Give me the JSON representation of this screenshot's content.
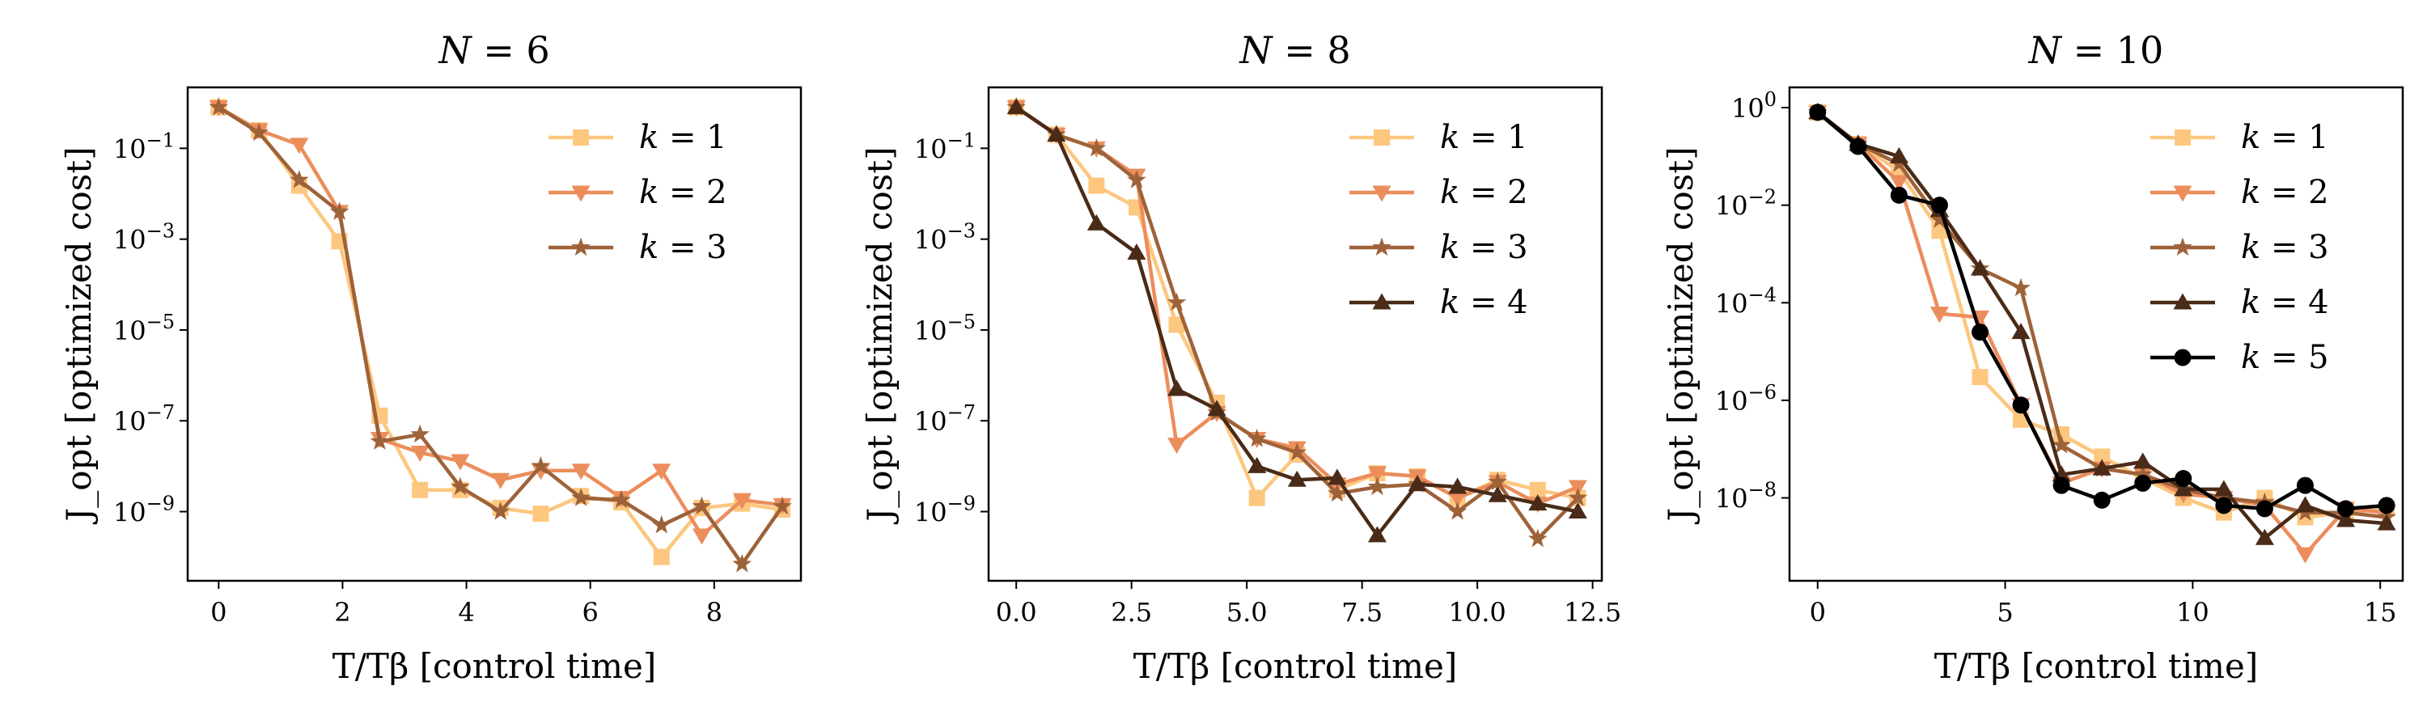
{
  "figure": {
    "panels": [
      {
        "title": "N = 6",
        "xlabel": "T/Tβ [control time]",
        "ylabel": "J_opt [optimized cost]"
      },
      {
        "title": "N = 8",
        "xlabel": "T/Tβ [control time]",
        "ylabel": "J_opt [optimized cost]"
      },
      {
        "title": "N = 10",
        "xlabel": "T/Tβ [control time]",
        "ylabel": "J_opt [optimized cost]"
      }
    ]
  },
  "chart_data": [
    {
      "type": "line",
      "title": "N = 6",
      "xlabel": "T/Tβ [control time]",
      "ylabel": "J_opt [optimized cost]",
      "yscale": "log",
      "xlim": [
        -0.5,
        9.4
      ],
      "ylim": [
        3e-11,
        2.2
      ],
      "xticks": [
        0,
        2,
        4,
        6,
        8
      ],
      "xtick_labels": [
        "0",
        "2",
        "4",
        "6",
        "8"
      ],
      "yticks": [
        1e-09,
        1e-07,
        1e-05,
        0.001,
        0.1
      ],
      "ytick_labels": [
        "10^-9",
        "10^-7",
        "10^-5",
        "10^-3",
        "10^-1"
      ],
      "legend": {
        "position": "top-right"
      },
      "series": [
        {
          "name": "k = 1",
          "color": "#fdc77f",
          "marker": "square",
          "x": [
            0,
            0.65,
            1.3,
            1.95,
            2.6,
            3.25,
            3.9,
            4.55,
            5.2,
            5.85,
            6.5,
            7.15,
            7.8,
            8.45,
            9.1
          ],
          "y": [
            0.8,
            0.25,
            0.015,
            0.0009,
            1.3e-07,
            3e-09,
            3e-09,
            1.2e-09,
            9e-10,
            2.2e-09,
            1.6e-09,
            1e-10,
            1.2e-09,
            1.5e-09,
            1.1e-09
          ]
        },
        {
          "name": "k = 2",
          "color": "#ec8d5c",
          "marker": "triangle-down",
          "x": [
            0,
            0.65,
            1.3,
            1.95,
            2.6,
            3.25,
            3.9,
            4.55,
            5.2,
            5.85,
            6.5,
            7.15,
            7.8,
            8.45,
            9.1
          ],
          "y": [
            0.8,
            0.25,
            0.12,
            0.004,
            4e-08,
            2e-08,
            1.3e-08,
            5e-09,
            8e-09,
            8e-09,
            2e-09,
            8e-09,
            3e-10,
            1.8e-09,
            1.4e-09
          ]
        },
        {
          "name": "k = 3",
          "color": "#9e6239",
          "marker": "star",
          "x": [
            0,
            0.65,
            1.3,
            1.95,
            2.6,
            3.25,
            3.9,
            4.55,
            5.2,
            5.85,
            6.5,
            7.15,
            7.8,
            8.45,
            9.1
          ],
          "y": [
            0.8,
            0.22,
            0.02,
            0.004,
            3.5e-08,
            5e-08,
            3.5e-09,
            1e-09,
            1e-08,
            2e-09,
            1.8e-09,
            5e-10,
            1.3e-09,
            7e-11,
            1.3e-09
          ]
        }
      ]
    },
    {
      "type": "line",
      "title": "N = 8",
      "xlabel": "T/Tβ [control time]",
      "ylabel": "J_opt [optimized cost]",
      "yscale": "log",
      "xlim": [
        -0.6,
        12.7
      ],
      "ylim": [
        3e-11,
        2.2
      ],
      "xticks": [
        0,
        2.5,
        5,
        7.5,
        10,
        12.5
      ],
      "xtick_labels": [
        "0.0",
        "2.5",
        "5.0",
        "7.5",
        "10.0",
        "12.5"
      ],
      "yticks": [
        1e-09,
        1e-07,
        1e-05,
        0.001,
        0.1
      ],
      "ytick_labels": [
        "10^-9",
        "10^-7",
        "10^-5",
        "10^-3",
        "10^-1"
      ],
      "legend": {
        "position": "top-right"
      },
      "series": [
        {
          "name": "k = 1",
          "color": "#fdc77f",
          "marker": "square",
          "x": [
            0,
            0.87,
            1.74,
            2.61,
            3.48,
            4.35,
            5.22,
            6.09,
            6.96,
            7.83,
            8.7,
            9.57,
            10.44,
            11.31,
            12.18
          ],
          "y": [
            0.8,
            0.2,
            0.015,
            0.005,
            1.3e-05,
            2.5e-07,
            2e-09,
            1.8e-08,
            3e-09,
            7e-09,
            6e-09,
            2e-09,
            5e-09,
            3e-09,
            2e-09
          ]
        },
        {
          "name": "k = 2",
          "color": "#ec8d5c",
          "marker": "triangle-down",
          "x": [
            0,
            0.87,
            1.74,
            2.61,
            3.48,
            4.35,
            5.22,
            6.09,
            6.96,
            7.83,
            8.7,
            9.57,
            10.44,
            11.31,
            12.18
          ],
          "y": [
            0.8,
            0.2,
            0.1,
            0.025,
            3e-08,
            1.5e-07,
            4e-08,
            2.5e-08,
            4e-09,
            7e-09,
            6e-09,
            2e-09,
            4.5e-09,
            1.5e-09,
            3.5e-09
          ]
        },
        {
          "name": "k = 3",
          "color": "#9e6239",
          "marker": "star",
          "x": [
            0,
            0.87,
            1.74,
            2.61,
            3.48,
            4.35,
            5.22,
            6.09,
            6.96,
            7.83,
            8.7,
            9.57,
            10.44,
            11.31,
            12.18
          ],
          "y": [
            0.8,
            0.2,
            0.1,
            0.02,
            4e-05,
            1.5e-07,
            4e-08,
            2e-08,
            2.5e-09,
            3.5e-09,
            4e-09,
            1e-09,
            4.5e-09,
            2.5e-10,
            2e-09
          ]
        },
        {
          "name": "k = 4",
          "color": "#4a2b18",
          "marker": "triangle-up",
          "x": [
            0,
            0.87,
            1.74,
            2.61,
            3.48,
            4.35,
            5.22,
            6.09,
            6.96,
            7.83,
            8.7,
            9.57,
            10.44,
            11.31,
            12.18
          ],
          "y": [
            0.8,
            0.2,
            0.0022,
            0.0005,
            5e-07,
            1.8e-07,
            1e-08,
            5e-09,
            5.5e-09,
            3e-10,
            4e-09,
            3.5e-09,
            2.3e-09,
            1.5e-09,
            1e-09
          ]
        }
      ]
    },
    {
      "type": "line",
      "title": "N = 10",
      "xlabel": "T/Tβ [control time]",
      "ylabel": "J_opt [optimized cost]",
      "yscale": "log",
      "xlim": [
        -0.75,
        15.6
      ],
      "ylim": [
        2e-10,
        2.6
      ],
      "xticks": [
        0,
        5,
        10,
        15
      ],
      "xtick_labels": [
        "0",
        "5",
        "10",
        "15"
      ],
      "yticks": [
        1e-08,
        1e-06,
        0.0001,
        0.01,
        1
      ],
      "ytick_labels": [
        "10^-8",
        "10^-6",
        "10^-4",
        "10^-2",
        "10^0"
      ],
      "legend": {
        "position": "top-right"
      },
      "series": [
        {
          "name": "k = 1",
          "color": "#fdc77f",
          "marker": "square",
          "x": [
            0,
            1.08,
            2.17,
            3.25,
            4.33,
            5.42,
            6.5,
            7.58,
            8.67,
            9.75,
            10.83,
            11.92,
            13,
            14.08,
            15.17
          ],
          "y": [
            0.8,
            0.18,
            0.05,
            0.003,
            3e-06,
            4e-07,
            2e-07,
            7e-08,
            2.5e-08,
            1e-08,
            5e-09,
            1e-08,
            4e-09,
            5e-09,
            6e-09
          ]
        },
        {
          "name": "k = 2",
          "color": "#ec8d5c",
          "marker": "triangle-down",
          "x": [
            0,
            1.08,
            2.17,
            3.25,
            4.33,
            5.42,
            6.5,
            7.58,
            8.67,
            9.75,
            10.83,
            11.92,
            13,
            14.08,
            15.17
          ],
          "y": [
            0.8,
            0.18,
            0.03,
            6e-05,
            5e-05,
            8e-07,
            2e-08,
            4e-08,
            3e-08,
            1.2e-08,
            1e-08,
            7e-09,
            7e-10,
            6e-09,
            5e-09
          ]
        },
        {
          "name": "k = 3",
          "color": "#9e6239",
          "marker": "star",
          "x": [
            0,
            1.08,
            2.17,
            3.25,
            4.33,
            5.42,
            6.5,
            7.58,
            8.67,
            9.75,
            10.83,
            11.92,
            13,
            14.08,
            15.17
          ],
          "y": [
            0.8,
            0.18,
            0.07,
            0.005,
            0.0005,
            0.0002,
            1.2e-07,
            4e-08,
            3e-08,
            1.5e-08,
            1e-08,
            8e-09,
            5e-09,
            5e-09,
            4e-09
          ]
        },
        {
          "name": "k = 4",
          "color": "#4a2b18",
          "marker": "triangle-up",
          "x": [
            0,
            1.08,
            2.17,
            3.25,
            4.33,
            5.42,
            6.5,
            7.58,
            8.67,
            9.75,
            10.83,
            11.92,
            13,
            14.08,
            15.17
          ],
          "y": [
            0.8,
            0.18,
            0.1,
            0.008,
            0.0005,
            2.5e-05,
            3e-08,
            4e-08,
            5.5e-08,
            1.5e-08,
            1.5e-08,
            1.5e-09,
            7e-09,
            3.5e-09,
            3e-09
          ]
        },
        {
          "name": "k = 5",
          "color": "#000000",
          "marker": "circle",
          "x": [
            0,
            1.08,
            2.17,
            3.25,
            4.33,
            5.42,
            6.5,
            7.58,
            8.67,
            9.75,
            10.83,
            11.92,
            13,
            14.08,
            15.17
          ],
          "y": [
            0.8,
            0.16,
            0.016,
            0.01,
            2.5e-05,
            8e-07,
            1.8e-08,
            9e-09,
            2e-08,
            2.5e-08,
            7e-09,
            6e-09,
            1.8e-08,
            6e-09,
            7e-09
          ]
        }
      ]
    }
  ]
}
